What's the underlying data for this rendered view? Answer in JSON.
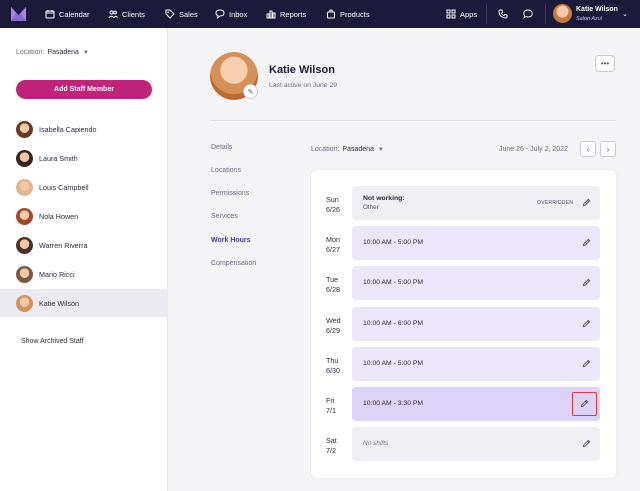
{
  "topnav": {
    "items": [
      {
        "label": "Calendar",
        "icon": "calendar-icon"
      },
      {
        "label": "Clients",
        "icon": "users-icon"
      },
      {
        "label": "Sales",
        "icon": "tag-icon"
      },
      {
        "label": "Inbox",
        "icon": "chat-icon"
      },
      {
        "label": "Reports",
        "icon": "bar-chart-icon"
      },
      {
        "label": "Products",
        "icon": "bag-icon"
      }
    ],
    "apps_label": "Apps",
    "user_name": "Katie Wilson",
    "user_business": "Salon Azul"
  },
  "sidebar": {
    "location_label": "Location:",
    "location_value": "Pasadena",
    "add_button": "Add Staff Member",
    "staff": [
      {
        "name": "Isabella Capiendo",
        "color": "#6b3a24"
      },
      {
        "name": "Laura Smith",
        "color": "#3a2419"
      },
      {
        "name": "Louis Campbell",
        "color": "#e2b48f"
      },
      {
        "name": "Nola Howen",
        "color": "#a2472a"
      },
      {
        "name": "Warren Riverra",
        "color": "#4a3226"
      },
      {
        "name": "Mario Ricci",
        "color": "#7a5a46"
      },
      {
        "name": "Katie Wilson",
        "color": "#d59058"
      }
    ],
    "active_index": 6,
    "show_archived": "Show Archived Staff"
  },
  "profile": {
    "name": "Katie Wilson",
    "last_active": "Last active on June 29",
    "more": "•••"
  },
  "subnav": {
    "items": [
      "Details",
      "Locations",
      "Permissions",
      "Services",
      "Work Hours",
      "Compensation"
    ],
    "active": "Work Hours"
  },
  "workhours": {
    "location_label": "Location:",
    "location_value": "Pasadena",
    "date_range": "June 26 - July 2, 2022",
    "days": [
      {
        "day": "Sun",
        "date": "6/26",
        "type": "off",
        "title": "Not working:",
        "sub": "Other",
        "badge": "OVERRIDDEN"
      },
      {
        "day": "Mon",
        "date": "6/27",
        "type": "work",
        "hours": "10:00 AM - 5:00 PM"
      },
      {
        "day": "Tue",
        "date": "6/28",
        "type": "work",
        "hours": "10:00 AM - 5:00 PM"
      },
      {
        "day": "Wed",
        "date": "6/29",
        "type": "work",
        "hours": "10:00 AM - 6:00 PM"
      },
      {
        "day": "Thu",
        "date": "6/30",
        "type": "work",
        "hours": "10:00 AM - 5:00 PM"
      },
      {
        "day": "Fri",
        "date": "7/1",
        "type": "work",
        "hours": "10:00 AM - 3:30 PM",
        "selected": true
      },
      {
        "day": "Sat",
        "date": "7/2",
        "type": "none",
        "hours": "No shifts"
      }
    ]
  }
}
